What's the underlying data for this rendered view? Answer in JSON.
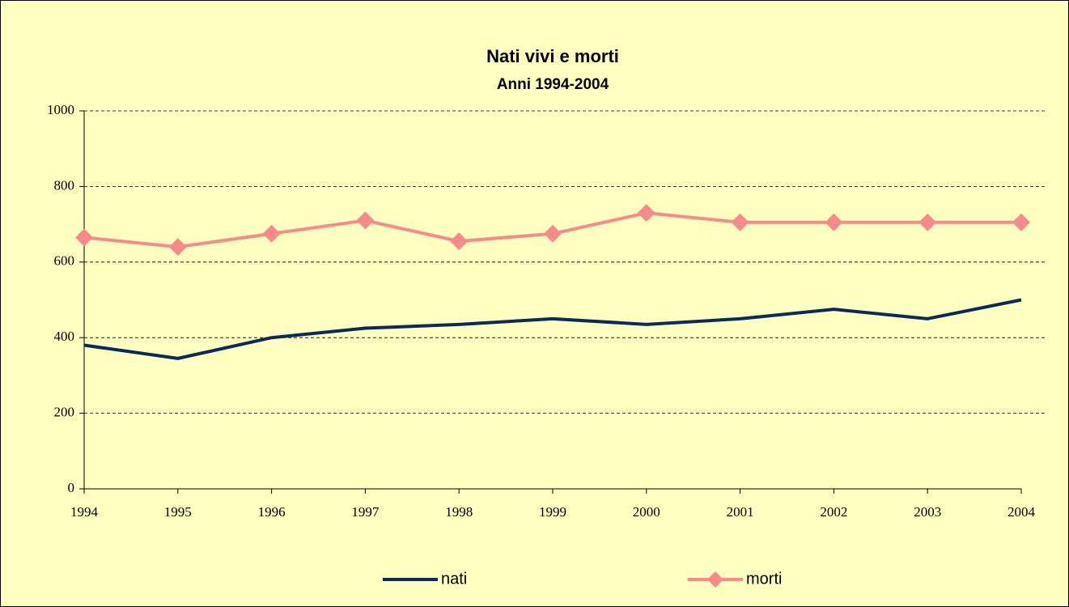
{
  "chart_data": {
    "type": "line",
    "title": "Nati vivi e morti",
    "subtitle": "Anni 1994-2004",
    "categories": [
      "1994",
      "1995",
      "1996",
      "1997",
      "1998",
      "1999",
      "2000",
      "2001",
      "2002",
      "2003",
      "2004"
    ],
    "series": [
      {
        "name": "nati",
        "color": "#0a2a5e",
        "marker": "none",
        "values": [
          380,
          345,
          400,
          425,
          435,
          450,
          435,
          450,
          475,
          450,
          500
        ]
      },
      {
        "name": "morti",
        "color": "#f88a8a",
        "marker": "diamond",
        "values": [
          665,
          640,
          675,
          710,
          655,
          675,
          730,
          705,
          705,
          705,
          705
        ]
      }
    ],
    "ylim": [
      0,
      1000
    ],
    "yticks": [
      0,
      200,
      400,
      600,
      800,
      1000
    ],
    "grid": true,
    "legend": "bottom"
  }
}
